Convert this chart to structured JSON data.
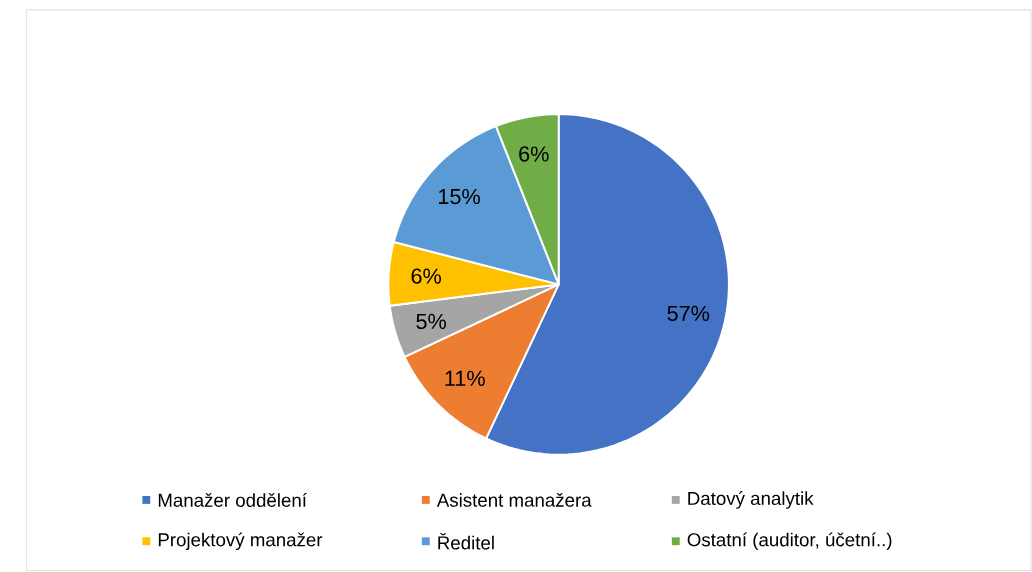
{
  "chart_data": {
    "type": "pie",
    "categories": [
      "Manažer oddělení",
      "Asistent manažera",
      "Datový analytik",
      "Projektový manažer",
      "Ředitel",
      "Ostatní (auditor, účetní..)"
    ],
    "values": [
      57,
      11,
      5,
      6,
      15,
      6
    ],
    "value_labels": [
      "57%",
      "11%",
      "5%",
      "6%",
      "15%",
      "6%"
    ],
    "colors": [
      "#4472c4",
      "#ed7d31",
      "#a5a5a5",
      "#ffc000",
      "#5b9bd5",
      "#70ad47"
    ],
    "legend": "bottom"
  }
}
